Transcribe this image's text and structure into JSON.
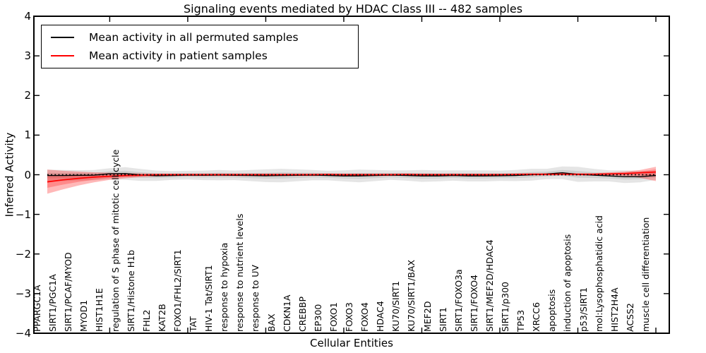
{
  "chart_data": {
    "type": "line",
    "title": "Signaling events mediated by HDAC Class III -- 482 samples",
    "xlabel": "Cellular Entities",
    "ylabel": "Inferred Activity",
    "ylim": [
      -4,
      4
    ],
    "y_ticks": [
      4,
      3,
      2,
      1,
      0,
      -1,
      -2,
      -3,
      -4
    ],
    "grid": false,
    "legend_position": "upper left",
    "x_tick_positions": [
      4,
      9,
      14,
      19,
      24,
      29,
      34,
      39
    ],
    "zero_line": {
      "style": "dotted",
      "y": 0,
      "color": "#000000"
    },
    "categories": [
      "PPARGC1A",
      "SIRT1/PGC1A",
      "SIRT1/PCAF/MYOD",
      "MYOD1",
      "HIST1H1E",
      "regulation of S phase of mitotic cell cycle",
      "SIRT1/Histone H1b",
      "FHL2",
      "KAT2B",
      "FOXO1/FHL2/SIRT1",
      "TAT",
      "HIV-1 Tat/SIRT1",
      "response to hypoxia",
      "response to nutrient levels",
      "response to UV",
      "BAX",
      "CDKN1A",
      "CREBBP",
      "EP300",
      "FOXO1",
      "FOXO3",
      "FOXO4",
      "HDAC4",
      "KU70/SIRT1",
      "KU70/SIRT1/BAX",
      "MEF2D",
      "SIRT1",
      "SIRT1/FOXO3a",
      "SIRT1/FOXO4",
      "SIRT1/MEF2D/HDAC4",
      "SIRT1/p300",
      "TP53",
      "XRCC6",
      "apoptosis",
      "induction of apoptosis",
      "p53/SIRT1",
      "mol:Lysophosphatidic acid",
      "HIST2H4A",
      "ACSS2",
      "muscle cell differentiation"
    ],
    "series": [
      {
        "name": "Mean activity in all permuted samples",
        "color": "#000000",
        "band_color": "rgba(0,0,0,0.10)",
        "band_inner_color": "rgba(0,0,0,0.09)",
        "values": [
          -0.02,
          -0.02,
          -0.015,
          -0.01,
          0.025,
          0.03,
          -0.005,
          -0.025,
          -0.02,
          -0.01,
          -0.015,
          -0.01,
          -0.015,
          -0.02,
          -0.025,
          -0.02,
          -0.015,
          -0.01,
          -0.02,
          -0.03,
          -0.03,
          -0.02,
          -0.01,
          -0.02,
          -0.03,
          -0.03,
          -0.02,
          -0.03,
          -0.03,
          -0.025,
          -0.02,
          0.0,
          0.02,
          0.05,
          0.01,
          -0.01,
          -0.03,
          -0.05,
          -0.05,
          -0.02
        ],
        "band_halfwidth": [
          0.15,
          0.14,
          0.13,
          0.13,
          0.14,
          0.16,
          0.15,
          0.13,
          0.11,
          0.11,
          0.12,
          0.13,
          0.12,
          0.14,
          0.16,
          0.17,
          0.15,
          0.13,
          0.12,
          0.14,
          0.16,
          0.14,
          0.12,
          0.13,
          0.15,
          0.14,
          0.13,
          0.14,
          0.14,
          0.13,
          0.14,
          0.15,
          0.13,
          0.16,
          0.19,
          0.16,
          0.14,
          0.16,
          0.14,
          0.11
        ]
      },
      {
        "name": "Mean activity in patient samples",
        "color": "#ff0000",
        "band_color": "rgba(255,0,0,0.28)",
        "band_inner_color": "rgba(255,0,0,0.25)",
        "values": [
          -0.18,
          -0.13,
          -0.09,
          -0.06,
          -0.04,
          -0.02,
          -0.01,
          0,
          0,
          0,
          0,
          0,
          0,
          0,
          0,
          0,
          0,
          0,
          0.005,
          0,
          0,
          0,
          0,
          0.005,
          0,
          0,
          0,
          0,
          0,
          0,
          0.005,
          0.01,
          0.01,
          0.015,
          0.01,
          0.01,
          0.02,
          0.03,
          0.05,
          0.07
        ],
        "band_upper": [
          0.13,
          0.1,
          0.08,
          0.06,
          0.05,
          0.04,
          0.035,
          0.03,
          0.03,
          0.03,
          0.03,
          0.03,
          0.03,
          0.03,
          0.03,
          0.03,
          0.03,
          0.03,
          0.035,
          0.03,
          0.03,
          0.03,
          0.03,
          0.035,
          0.03,
          0.03,
          0.03,
          0.03,
          0.03,
          0.03,
          0.035,
          0.04,
          0.04,
          0.045,
          0.04,
          0.04,
          0.06,
          0.08,
          0.12,
          0.2
        ],
        "band_lower": [
          -0.48,
          -0.37,
          -0.27,
          -0.19,
          -0.13,
          -0.09,
          -0.06,
          -0.04,
          -0.03,
          -0.03,
          -0.03,
          -0.03,
          -0.03,
          -0.03,
          -0.03,
          -0.03,
          -0.03,
          -0.03,
          -0.025,
          -0.03,
          -0.03,
          -0.03,
          -0.03,
          -0.025,
          -0.03,
          -0.03,
          -0.03,
          -0.03,
          -0.03,
          -0.03,
          -0.025,
          -0.02,
          -0.02,
          -0.015,
          -0.02,
          -0.02,
          -0.02,
          -0.03,
          -0.08,
          -0.16
        ]
      }
    ]
  },
  "legend": {
    "items": [
      {
        "label": "Mean activity in all permuted samples",
        "color": "#000000"
      },
      {
        "label": "Mean activity in patient samples",
        "color": "#ff0000"
      }
    ]
  }
}
